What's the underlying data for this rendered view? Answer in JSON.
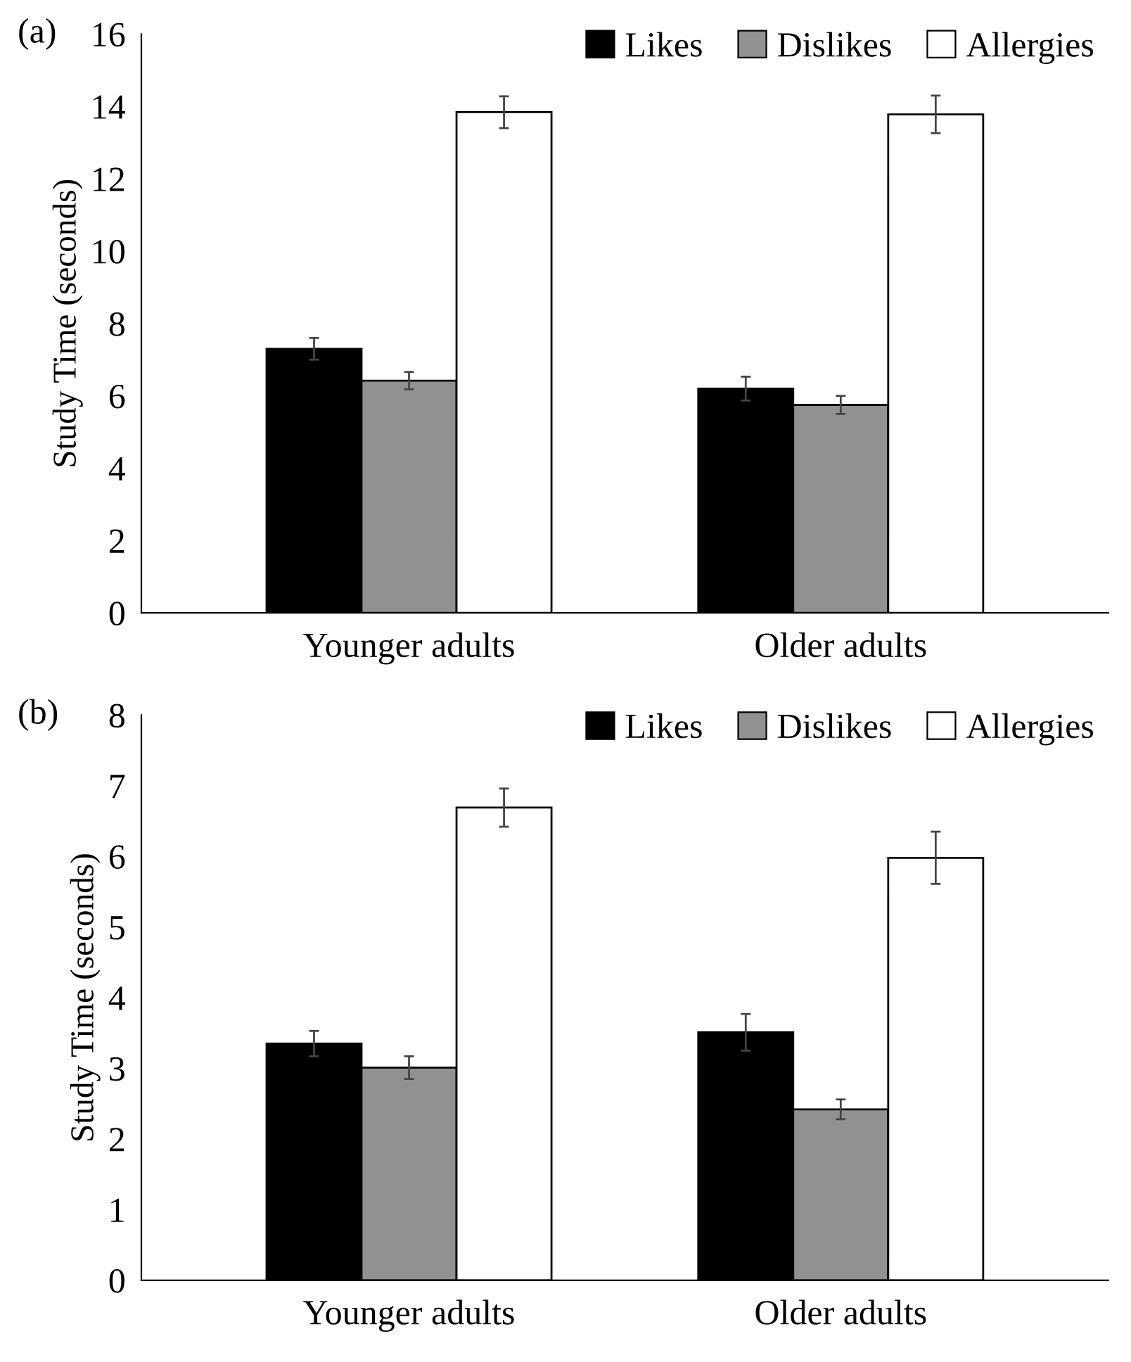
{
  "chart_data": [
    {
      "type": "bar",
      "title": "(a)",
      "ylabel": "Study Time (seconds)",
      "categories": [
        "Younger adults",
        "Older adults"
      ],
      "series": [
        {
          "name": "Likes",
          "color": "#000000",
          "values": [
            7.3,
            6.2
          ],
          "errors": [
            0.3,
            0.33
          ]
        },
        {
          "name": "Dislikes",
          "color": "#919191",
          "values": [
            6.42,
            5.75
          ],
          "errors": [
            0.24,
            0.25
          ]
        },
        {
          "name": "Allergies",
          "color": "#ffffff",
          "values": [
            13.84,
            13.78
          ],
          "errors": [
            0.44,
            0.52
          ]
        }
      ],
      "ylim": [
        0,
        16
      ],
      "yticks": [
        0,
        2,
        4,
        6,
        8,
        10,
        12,
        14,
        16
      ],
      "legend": "top right",
      "grid": false
    },
    {
      "type": "bar",
      "title": "(b)",
      "ylabel": "Study Time (seconds)",
      "categories": [
        "Younger adults",
        "Older adults"
      ],
      "series": [
        {
          "name": "Likes",
          "color": "#000000",
          "values": [
            3.35,
            3.51
          ],
          "errors": [
            0.18,
            0.26
          ]
        },
        {
          "name": "Dislikes",
          "color": "#919191",
          "values": [
            3.01,
            2.42
          ],
          "errors": [
            0.16,
            0.14
          ]
        },
        {
          "name": "Allergies",
          "color": "#ffffff",
          "values": [
            6.69,
            5.98
          ],
          "errors": [
            0.27,
            0.37
          ]
        }
      ],
      "ylim": [
        0,
        8
      ],
      "yticks": [
        0,
        1,
        2,
        3,
        4,
        5,
        6,
        7,
        8
      ],
      "legend": "top right",
      "grid": false
    }
  ]
}
